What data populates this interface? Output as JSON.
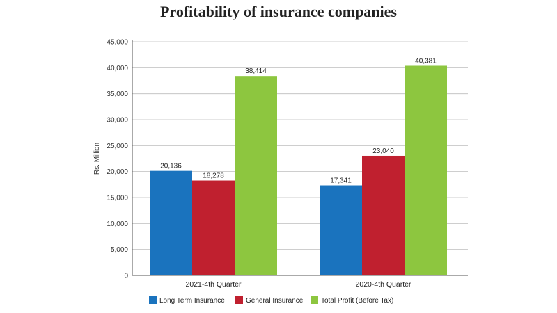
{
  "chart_data": {
    "type": "bar",
    "title": "Profitability of insurance companies",
    "ylabel": "Rs. Million",
    "xlabel": "",
    "ylim": [
      0,
      45000
    ],
    "yticks": [
      0,
      5000,
      10000,
      15000,
      20000,
      25000,
      30000,
      35000,
      40000,
      45000
    ],
    "ytick_labels": [
      "0",
      "5,000",
      "10,000",
      "15,000",
      "20,000",
      "25,000",
      "30,000",
      "35,000",
      "40,000",
      "45,000"
    ],
    "grid": true,
    "legend_position": "bottom",
    "categories": [
      "2021-4th Quarter",
      "2020-4th Quarter"
    ],
    "series": [
      {
        "name": "Long Term Insurance",
        "color": "#1a73be",
        "values": [
          20136,
          17341
        ],
        "labels": [
          "20,136",
          "17,341"
        ]
      },
      {
        "name": "General Insurance",
        "color": "#c0202f",
        "values": [
          18278,
          23040
        ],
        "labels": [
          "18,278",
          "23,040"
        ]
      },
      {
        "name": "Total Profit (Before Tax)",
        "color": "#8dc63f",
        "values": [
          38414,
          40381
        ],
        "labels": [
          "38,414",
          "40,381"
        ]
      }
    ]
  }
}
